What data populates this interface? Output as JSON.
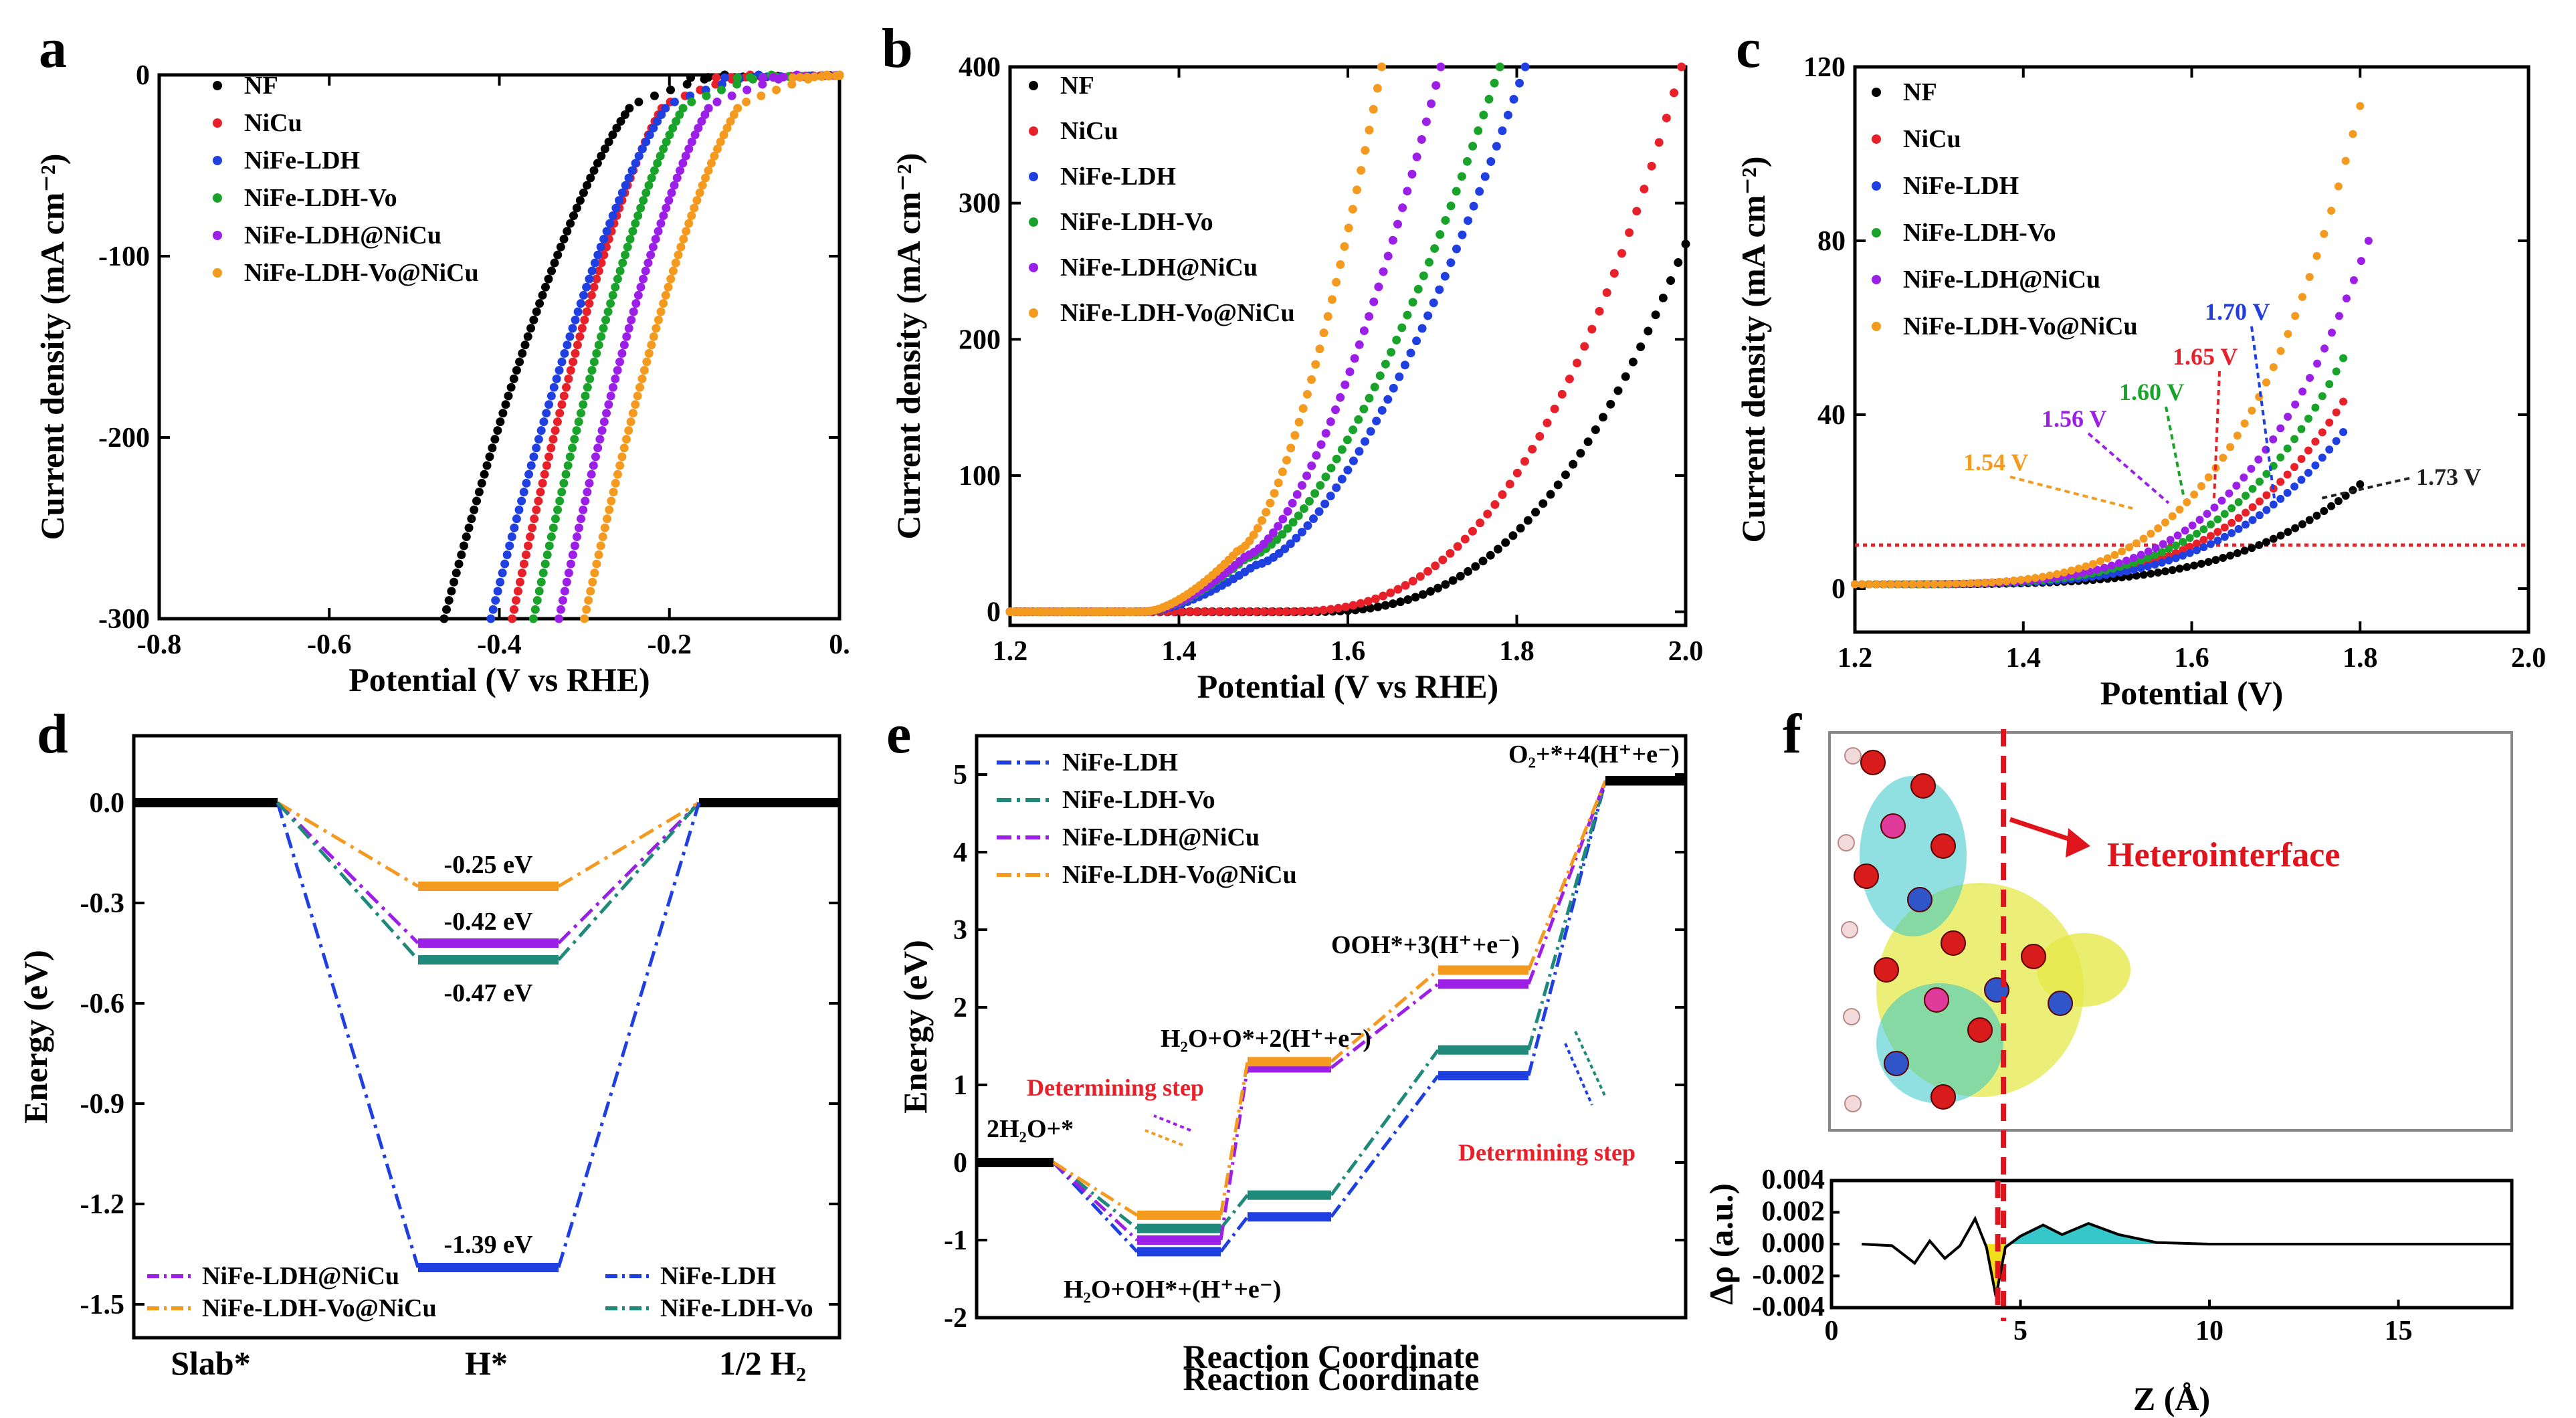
{
  "figure": {
    "panels": [
      "a",
      "b",
      "c",
      "d",
      "e",
      "f"
    ]
  },
  "chart_data": [
    {
      "panel": "a",
      "type": "scatter",
      "xlabel": "Potential (V vs RHE)",
      "ylabel": "Current density (mA cm⁻²)",
      "xlim": [
        -0.8,
        0.0
      ],
      "ylim": [
        -300,
        0
      ],
      "xticks": [
        -0.8,
        -0.6,
        -0.4,
        -0.2,
        0.0
      ],
      "xtick_labels": [
        "-0.8",
        "-0.6",
        "-0.4",
        "-0.2",
        "0."
      ],
      "yticks": [
        0,
        -100,
        -200,
        -300
      ],
      "ytick_labels": [
        "0",
        "-100",
        "-200",
        "-300"
      ],
      "legend_position": "top-left",
      "series": [
        {
          "name": "NF",
          "color": "#000000",
          "onset": -0.205,
          "at_300": -0.465
        },
        {
          "name": "NiCu",
          "color": "#e8202a",
          "onset": -0.175,
          "at_300": -0.385
        },
        {
          "name": "NiFe-LDH",
          "color": "#1f3fe0",
          "onset": -0.165,
          "at_300": -0.41
        },
        {
          "name": "NiFe-LDH-Vo",
          "color": "#1aa32b",
          "onset": -0.15,
          "at_300": -0.36
        },
        {
          "name": "NiFe-LDH@NiCu",
          "color": "#9b1fe6",
          "onset": -0.12,
          "at_300": -0.33
        },
        {
          "name": "NiFe-LDH-Vo@NiCu",
          "color": "#f39a1f",
          "onset": -0.085,
          "at_300": -0.3
        }
      ]
    },
    {
      "panel": "b",
      "type": "scatter",
      "xlabel": "Potential (V vs RHE)",
      "ylabel": "Current density (mA cm⁻²)",
      "xlim": [
        1.2,
        2.0
      ],
      "ylim": [
        -10,
        400
      ],
      "xticks": [
        1.2,
        1.4,
        1.6,
        1.8,
        2.0
      ],
      "xtick_labels": [
        "1.2",
        "1.4",
        "1.6",
        "1.8",
        "2.0"
      ],
      "yticks": [
        0,
        100,
        200,
        300,
        400
      ],
      "ytick_labels": [
        "0",
        "100",
        "200",
        "300",
        "400"
      ],
      "legend_position": "top-left",
      "series": [
        {
          "name": "NF",
          "color": "#000000",
          "onset": 1.55,
          "end_x": 2.0,
          "end_y": 270
        },
        {
          "name": "NiCu",
          "color": "#e8202a",
          "onset": 1.52,
          "end_x": 1.995,
          "end_y": 400
        },
        {
          "name": "NiFe-LDH",
          "color": "#1f3fe0",
          "onset": 1.36,
          "end_x": 1.81,
          "end_y": 400,
          "bump_x": 1.49,
          "bump_y": 38
        },
        {
          "name": "NiFe-LDH-Vo",
          "color": "#1aa32b",
          "onset": 1.36,
          "end_x": 1.78,
          "end_y": 400,
          "bump_x": 1.48,
          "bump_y": 44
        },
        {
          "name": "NiFe-LDH@NiCu",
          "color": "#9b1fe6",
          "onset": 1.36,
          "end_x": 1.71,
          "end_y": 400,
          "bump_x": 1.48,
          "bump_y": 46
        },
        {
          "name": "NiFe-LDH-Vo@NiCu",
          "color": "#f39a1f",
          "onset": 1.36,
          "end_x": 1.64,
          "end_y": 400,
          "bump_x": 1.47,
          "bump_y": 50
        }
      ]
    },
    {
      "panel": "c",
      "type": "scatter",
      "xlabel": "Potential (V)",
      "ylabel": "Current density (mA cm⁻²)",
      "xlim": [
        1.2,
        2.0
      ],
      "ylim": [
        -10,
        120
      ],
      "xticks": [
        1.2,
        1.4,
        1.6,
        1.8,
        2.0
      ],
      "xtick_labels": [
        "1.2",
        "1.4",
        "1.6",
        "1.8",
        "2.0"
      ],
      "yticks": [
        0,
        40,
        80,
        120
      ],
      "ytick_labels": [
        "0",
        "40",
        "80",
        "120"
      ],
      "reference_line": 10,
      "legend_position": "top-left",
      "series": [
        {
          "name": "NF",
          "color": "#000000",
          "end_x": 1.8,
          "end_y": 24,
          "v10": "1.73 V"
        },
        {
          "name": "NiCu",
          "color": "#e8202a",
          "end_x": 1.78,
          "end_y": 43,
          "v10": "1.65 V"
        },
        {
          "name": "NiFe-LDH",
          "color": "#1f3fe0",
          "end_x": 1.78,
          "end_y": 36,
          "v10": "1.70 V"
        },
        {
          "name": "NiFe-LDH-Vo",
          "color": "#1aa32b",
          "end_x": 1.78,
          "end_y": 53,
          "v10": "1.60 V"
        },
        {
          "name": "NiFe-LDH@NiCu",
          "color": "#9b1fe6",
          "end_x": 1.81,
          "end_y": 80,
          "v10": "1.56 V"
        },
        {
          "name": "NiFe-LDH-Vo@NiCu",
          "color": "#f39a1f",
          "end_x": 1.8,
          "end_y": 111,
          "v10": "1.54 V"
        }
      ],
      "annotations": [
        "1.54 V",
        "1.56 V",
        "1.60 V",
        "1.65 V",
        "1.70 V",
        "1.73 V"
      ]
    },
    {
      "panel": "d",
      "type": "line",
      "ylabel": "Energy (eV)",
      "categories": [
        "Slab*",
        "H*",
        "1/2 H₂"
      ],
      "ylim": [
        -1.6,
        0.2
      ],
      "yticks": [
        0.0,
        -0.3,
        -0.6,
        -0.9,
        -1.2,
        -1.5
      ],
      "ytick_labels": [
        "0.0",
        "-0.3",
        "-0.6",
        "-0.9",
        "-1.2",
        "-1.5"
      ],
      "legend_position": "bottom",
      "series": [
        {
          "name": "NiFe-LDH@NiCu",
          "color": "#9b1fe6",
          "values": [
            0.0,
            -0.42,
            0.0
          ]
        },
        {
          "name": "NiFe-LDH-Vo@NiCu",
          "color": "#f39a1f",
          "values": [
            0.0,
            -0.25,
            0.0
          ]
        },
        {
          "name": "NiFe-LDH",
          "color": "#1f3fe0",
          "values": [
            0.0,
            -1.39,
            0.0
          ]
        },
        {
          "name": "NiFe-LDH-Vo",
          "color": "#208a7a",
          "values": [
            0.0,
            -0.47,
            0.0
          ]
        }
      ],
      "annotations": [
        "-0.25 eV",
        "-0.42 eV",
        "-0.47 eV",
        "-1.39 eV"
      ]
    },
    {
      "panel": "e",
      "type": "line",
      "xlabel": "Reaction Coordinate",
      "ylabel": "Energy (eV)",
      "ylim": [
        -2,
        5.5
      ],
      "yticks": [
        -2,
        -1,
        0,
        1,
        2,
        3,
        4,
        5
      ],
      "ytick_labels": [
        "-2",
        "-1",
        "0",
        "1",
        "2",
        "3",
        "4",
        "5"
      ],
      "legend_position": "top-left",
      "steps": [
        "2H₂O+*",
        "H₂O+OH*+(H⁺+e⁻)",
        "H₂O+O*+2(H⁺+e⁻)",
        "OOH*+3(H⁺+e⁻)",
        "O₂+*+4(H⁺+e⁻)"
      ],
      "series": [
        {
          "name": "NiFe-LDH",
          "color": "#1f3fe0",
          "values": [
            0,
            -1.15,
            -0.7,
            1.12,
            4.92
          ]
        },
        {
          "name": "NiFe-LDH-Vo",
          "color": "#208a7a",
          "values": [
            0,
            -0.85,
            -0.42,
            1.45,
            4.92
          ]
        },
        {
          "name": "NiFe-LDH@NiCu",
          "color": "#9b1fe6",
          "values": [
            0,
            -1.0,
            1.22,
            2.3,
            4.92
          ]
        },
        {
          "name": "NiFe-LDH-Vo@NiCu",
          "color": "#f39a1f",
          "values": [
            0,
            -0.68,
            1.3,
            2.48,
            4.92
          ]
        }
      ],
      "annotations": [
        "Determining step",
        "Determining step"
      ]
    },
    {
      "panel": "f",
      "type": "line",
      "xlabel": "Z (Å)",
      "ylabel": "Δρ (a.u.)",
      "xlim": [
        0,
        18
      ],
      "ylim": [
        -0.004,
        0.004
      ],
      "xticks": [
        0,
        5,
        10,
        15
      ],
      "xtick_labels": [
        "0",
        "5",
        "10",
        "15"
      ],
      "yticks": [
        0.004,
        0.002,
        0.0,
        -0.002,
        -0.004
      ],
      "ytick_labels": [
        "0.004",
        "0.002",
        "0.000",
        "-0.002",
        "-0.004"
      ],
      "interface_z": 4.4,
      "annotation": "Heterointerface",
      "profile": [
        [
          0.8,
          0
        ],
        [
          1.6,
          -0.0001
        ],
        [
          2.2,
          -0.0012
        ],
        [
          2.6,
          0.0002
        ],
        [
          3.0,
          -0.0009
        ],
        [
          3.4,
          -0.0001
        ],
        [
          3.8,
          0.0016
        ],
        [
          4.1,
          -0.0002
        ],
        [
          4.35,
          -0.0033
        ],
        [
          4.6,
          -0.0002
        ],
        [
          5.0,
          0.0005
        ],
        [
          5.6,
          0.0012
        ],
        [
          6.1,
          0.0006
        ],
        [
          6.8,
          0.0013
        ],
        [
          7.6,
          0.0006
        ],
        [
          8.6,
          0.0001
        ],
        [
          10,
          0
        ],
        [
          18,
          0
        ]
      ]
    }
  ]
}
